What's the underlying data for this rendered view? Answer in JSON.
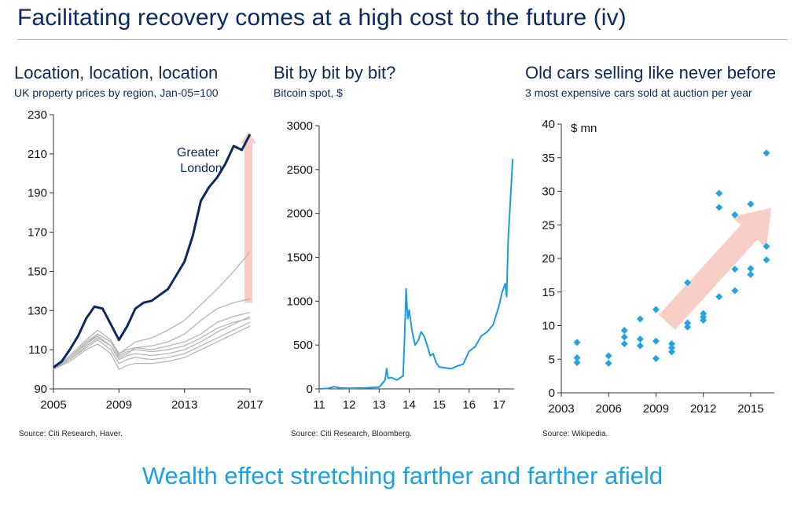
{
  "page": {
    "title": "Facilitating recovery comes at a high cost to the future (iv)",
    "footer": "Wealth effect stretching farther and farther afield"
  },
  "colors": {
    "navy": "#0b2a63",
    "grey": "#b5b5b5",
    "blue": "#1b9be0",
    "diamond": "#22a3e6",
    "arrow": "#f7c6bd"
  },
  "chart_data": [
    {
      "type": "line",
      "title": "Location, location, location",
      "subtitle": "UK property prices by region, Jan-05=100",
      "source": "Source: Citi Research, Haver.",
      "annotation": "Greater London",
      "xlim": [
        2005,
        2017
      ],
      "ylim": [
        90,
        230
      ],
      "xticks": [
        "2005",
        "2009",
        "2013",
        "2017"
      ],
      "yticks": [
        "90",
        "110",
        "130",
        "150",
        "170",
        "190",
        "210",
        "230"
      ],
      "series": [
        {
          "highlight": true,
          "x": [
            2005,
            2005.5,
            2006,
            2006.5,
            2007,
            2007.5,
            2008,
            2008.5,
            2009,
            2009.5,
            2010,
            2010.5,
            2011,
            2011.5,
            2012,
            2012.5,
            2013,
            2013.5,
            2014,
            2014.5,
            2015,
            2015.5,
            2016,
            2016.5,
            2017
          ],
          "y": [
            101,
            104,
            110,
            117,
            126,
            132,
            131,
            123,
            115,
            122,
            131,
            134,
            135,
            138,
            141,
            148,
            155,
            168,
            186,
            193,
            198,
            205,
            214,
            212,
            220
          ]
        },
        {
          "x": [
            2005,
            2006,
            2007,
            2007.7,
            2008.5,
            2009,
            2009.5,
            2010,
            2011,
            2012,
            2013,
            2014,
            2015,
            2016,
            2017
          ],
          "y": [
            100,
            106,
            114,
            118,
            114,
            108,
            111,
            114,
            116,
            120,
            125,
            133,
            141,
            150,
            160
          ]
        },
        {
          "x": [
            2005,
            2006,
            2007,
            2007.7,
            2008.5,
            2009,
            2009.5,
            2010,
            2011,
            2012,
            2013,
            2014,
            2015,
            2016,
            2017
          ],
          "y": [
            100,
            105,
            112,
            116,
            112,
            106,
            108,
            111,
            112,
            114,
            118,
            125,
            131,
            134,
            136
          ]
        },
        {
          "x": [
            2005,
            2006,
            2007,
            2007.7,
            2008.5,
            2009,
            2009.5,
            2010,
            2011,
            2012,
            2013,
            2014,
            2015,
            2016,
            2017
          ],
          "y": [
            100,
            107,
            115,
            120,
            115,
            108,
            110,
            111,
            110,
            112,
            114,
            118,
            124,
            127,
            129
          ]
        },
        {
          "x": [
            2005,
            2006,
            2007,
            2007.7,
            2008.5,
            2009,
            2009.5,
            2010,
            2011,
            2012,
            2013,
            2014,
            2015,
            2016,
            2017
          ],
          "y": [
            100,
            106,
            113,
            117,
            112,
            105,
            107,
            108,
            107,
            108,
            110,
            114,
            119,
            123,
            127
          ]
        },
        {
          "x": [
            2005,
            2006,
            2007,
            2007.7,
            2008.5,
            2009,
            2009.5,
            2010,
            2011,
            2012,
            2013,
            2014,
            2015,
            2016,
            2017
          ],
          "y": [
            100,
            105,
            111,
            115,
            110,
            103,
            105,
            106,
            105,
            106,
            108,
            112,
            116,
            120,
            124
          ]
        },
        {
          "x": [
            2005,
            2006,
            2007,
            2007.7,
            2008.5,
            2009,
            2009.5,
            2010,
            2011,
            2012,
            2013,
            2014,
            2015,
            2016,
            2017
          ],
          "y": [
            100,
            104,
            110,
            113,
            108,
            100,
            102,
            103,
            103,
            104,
            106,
            110,
            114,
            118,
            122
          ]
        },
        {
          "x": [
            2005,
            2006,
            2007,
            2007.7,
            2008.5,
            2009,
            2009.5,
            2010,
            2011,
            2012,
            2013,
            2014,
            2015,
            2016,
            2017
          ],
          "y": [
            100,
            106,
            113,
            118,
            114,
            107,
            109,
            110,
            109,
            110,
            112,
            116,
            121,
            124,
            126
          ]
        }
      ],
      "arrow": {
        "x": 2017,
        "from": 134,
        "to": 221
      }
    },
    {
      "type": "line",
      "title": "Bit by bit by bit?",
      "subtitle": "Bitcoin spot, $",
      "source": "Source: Citi Research, Bloomberg.",
      "xlim": [
        11,
        17.5
      ],
      "ylim": [
        0,
        3000
      ],
      "xticks": [
        "11",
        "12",
        "13",
        "14",
        "15",
        "16",
        "17"
      ],
      "yticks": [
        "0",
        "500",
        "1000",
        "1500",
        "2000",
        "2500",
        "3000"
      ],
      "series": [
        {
          "x": [
            11,
            11.3,
            11.5,
            11.7,
            12,
            12.5,
            13,
            13.2,
            13.25,
            13.3,
            13.4,
            13.6,
            13.8,
            13.85,
            13.9,
            13.95,
            14.0,
            14.1,
            14.2,
            14.3,
            14.4,
            14.5,
            14.6,
            14.7,
            14.8,
            14.9,
            15.0,
            15.2,
            15.4,
            15.6,
            15.8,
            16.0,
            16.2,
            16.4,
            16.6,
            16.8,
            17.0,
            17.1,
            17.2,
            17.25,
            17.3,
            17.35,
            17.4,
            17.45
          ],
          "y": [
            1,
            5,
            25,
            10,
            6,
            10,
            20,
            100,
            230,
            120,
            130,
            100,
            150,
            600,
            1140,
            800,
            900,
            650,
            500,
            550,
            650,
            600,
            500,
            380,
            400,
            300,
            250,
            240,
            230,
            260,
            280,
            430,
            480,
            600,
            650,
            730,
            950,
            1100,
            1200,
            1050,
            1700,
            2000,
            2300,
            2620
          ]
        }
      ]
    },
    {
      "type": "scatter",
      "title": "Old cars selling like never before",
      "subtitle": "3 most expensive cars sold at auction per year",
      "source": "Source: Wikipedia.",
      "unit": "$ mn",
      "xlim": [
        2003,
        2016.5
      ],
      "ylim": [
        0,
        40
      ],
      "xticks": [
        "2003",
        "2006",
        "2009",
        "2012",
        "2015"
      ],
      "yticks": [
        "0",
        "5",
        "10",
        "15",
        "20",
        "25",
        "30",
        "35",
        "40"
      ],
      "x": [
        2004,
        2004,
        2004,
        2006,
        2006,
        2007,
        2007,
        2007,
        2008,
        2008,
        2008,
        2009,
        2009,
        2009,
        2010,
        2010,
        2010,
        2011,
        2011,
        2011,
        2012,
        2012,
        2012,
        2013,
        2013,
        2013,
        2014,
        2014,
        2014,
        2015,
        2015,
        2015,
        2016,
        2016,
        2016
      ],
      "y": [
        7.5,
        5.2,
        4.5,
        5.5,
        4.4,
        9.3,
        8.3,
        7.3,
        11,
        8,
        7,
        12.4,
        7.7,
        5.1,
        7.3,
        6.7,
        6.1,
        16.4,
        10.4,
        9.8,
        11.8,
        11.3,
        10.8,
        29.7,
        27.6,
        14.3,
        26.5,
        18.4,
        15.2,
        28.1,
        18.5,
        17.6,
        35.7,
        21.8,
        19.8
      ],
      "arrow": {
        "from": [
          2009.7,
          10.5
        ],
        "to": [
          2016.3,
          27.5
        ]
      }
    }
  ]
}
